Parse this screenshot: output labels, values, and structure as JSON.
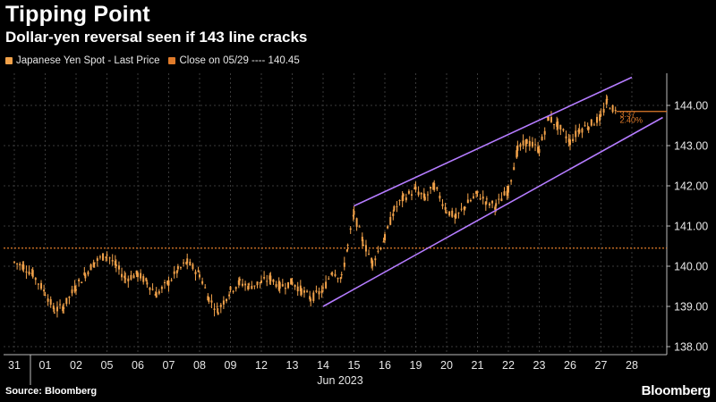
{
  "header": {
    "title": "Tipping Point",
    "subtitle": "Dollar-yen reversal seen if 143 line cracks"
  },
  "legend": {
    "series_label": "Japanese Yen Spot - Last Price",
    "close_label": "Close on 05/29 ---- 140.45"
  },
  "footer": {
    "source": "Source: Bloomberg",
    "brand": "Bloomberg"
  },
  "colors": {
    "background": "#000000",
    "candle": "#f2a24a",
    "close_line": "#e07b2a",
    "channel": "#b57cff",
    "grid": "#3a3a3a",
    "axis_text": "#e6e6e6"
  },
  "chart_data": {
    "type": "candlestick",
    "title": "Tipping Point",
    "subtitle": "Dollar-yen reversal seen if 143 line cracks",
    "xlabel": "Jun 2023",
    "ylabel": "",
    "ylim": [
      137.8,
      144.8
    ],
    "y_ticks": [
      "138.00",
      "139.00",
      "140.00",
      "141.00",
      "142.00",
      "143.00",
      "144.00"
    ],
    "x_ticks": [
      "31",
      "01",
      "02",
      "05",
      "06",
      "07",
      "08",
      "09",
      "12",
      "13",
      "14",
      "15",
      "16",
      "19",
      "20",
      "21",
      "22",
      "23",
      "26",
      "27",
      "28"
    ],
    "x_month_label": "Jun 2023",
    "grid": true,
    "legend_position": "top-left",
    "series": [
      {
        "name": "Japanese Yen Spot - Last Price",
        "style": "candles",
        "points": [
          [
            0.0,
            140.1
          ],
          [
            0.3,
            140.0
          ],
          [
            0.6,
            139.8
          ],
          [
            1.0,
            139.35
          ],
          [
            1.3,
            138.9
          ],
          [
            1.6,
            139.0
          ],
          [
            2.0,
            139.5
          ],
          [
            2.3,
            139.8
          ],
          [
            2.6,
            140.1
          ],
          [
            3.0,
            140.3
          ],
          [
            3.3,
            140.0
          ],
          [
            3.6,
            139.7
          ],
          [
            4.0,
            139.8
          ],
          [
            4.3,
            139.6
          ],
          [
            4.6,
            139.3
          ],
          [
            5.0,
            139.6
          ],
          [
            5.3,
            139.9
          ],
          [
            5.6,
            140.1
          ],
          [
            6.0,
            139.8
          ],
          [
            6.3,
            139.2
          ],
          [
            6.6,
            138.9
          ],
          [
            7.0,
            139.4
          ],
          [
            7.3,
            139.6
          ],
          [
            7.6,
            139.5
          ],
          [
            8.0,
            139.6
          ],
          [
            8.3,
            139.7
          ],
          [
            8.6,
            139.5
          ],
          [
            9.0,
            139.6
          ],
          [
            9.3,
            139.4
          ],
          [
            9.6,
            139.2
          ],
          [
            10.0,
            139.4
          ],
          [
            10.3,
            139.9
          ],
          [
            10.6,
            139.7
          ],
          [
            10.8,
            140.5
          ],
          [
            11.0,
            141.3
          ],
          [
            11.3,
            140.6
          ],
          [
            11.6,
            140.1
          ],
          [
            12.0,
            140.7
          ],
          [
            12.3,
            141.4
          ],
          [
            12.6,
            141.7
          ],
          [
            13.0,
            141.9
          ],
          [
            13.3,
            141.7
          ],
          [
            13.6,
            142.0
          ],
          [
            14.0,
            141.4
          ],
          [
            14.3,
            141.2
          ],
          [
            14.6,
            141.5
          ],
          [
            15.0,
            141.8
          ],
          [
            15.3,
            141.6
          ],
          [
            15.6,
            141.5
          ],
          [
            16.0,
            141.9
          ],
          [
            16.3,
            142.9
          ],
          [
            16.6,
            143.1
          ],
          [
            17.0,
            142.9
          ],
          [
            17.3,
            143.7
          ],
          [
            17.6,
            143.5
          ],
          [
            18.0,
            143.1
          ],
          [
            18.3,
            143.4
          ],
          [
            18.6,
            143.5
          ],
          [
            19.0,
            143.7
          ],
          [
            19.2,
            144.1
          ],
          [
            19.5,
            143.8
          ]
        ]
      },
      {
        "name": "Close on 05/29",
        "style": "horizontal-dotted",
        "value": 140.45
      },
      {
        "name": "Upper channel",
        "style": "line",
        "points": [
          [
            11.0,
            141.5
          ],
          [
            20.0,
            144.7
          ]
        ]
      },
      {
        "name": "Lower channel",
        "style": "line",
        "points": [
          [
            10.0,
            139.0
          ],
          [
            21.0,
            143.7
          ]
        ]
      }
    ],
    "annotations": [
      {
        "text": "3.37",
        "x": 19.55,
        "y": 143.85
      },
      {
        "text": "2.40%",
        "x": 19.55,
        "y": 143.7
      }
    ],
    "last_price": 143.85
  }
}
